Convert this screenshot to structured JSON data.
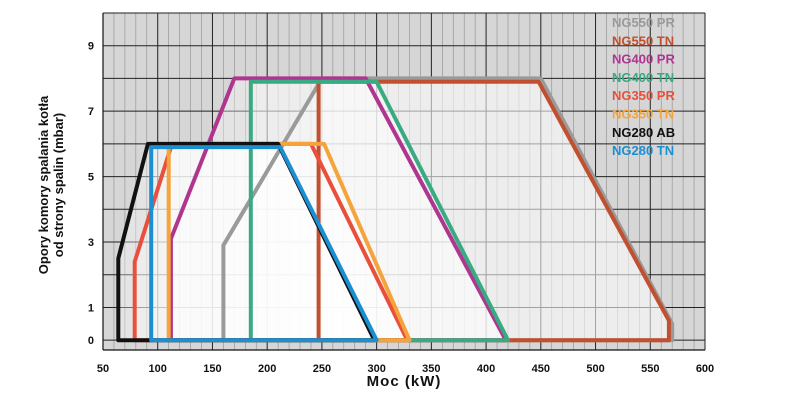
{
  "chart_data": {
    "type": "area",
    "xlabel": "Moc (kW)",
    "ylabel_lines": [
      "Opory komory spalania kotła",
      "od strony spalin (mbar)"
    ],
    "xlim": [
      50,
      600
    ],
    "ylim": [
      -0.3,
      10
    ],
    "x_ticks": [
      50,
      100,
      150,
      200,
      250,
      300,
      350,
      400,
      450,
      500,
      550,
      600
    ],
    "y_ticks": [
      0,
      1,
      3,
      5,
      7,
      9
    ],
    "x_tick_labels": [
      "50",
      "100",
      "150",
      "200",
      "250",
      "300",
      "350",
      "400",
      "450",
      "500",
      "550",
      "600"
    ],
    "y_tick_labels": [
      "0",
      "1",
      "3",
      "5",
      "7",
      "9"
    ],
    "grid": true,
    "legend_position": "top-right",
    "series": [
      {
        "name": "NG550 PR",
        "color": "#9a9a9a",
        "points": [
          [
            160,
            0
          ],
          [
            160,
            2.9
          ],
          [
            250,
            8
          ],
          [
            450,
            8
          ],
          [
            570,
            0.5
          ],
          [
            570,
            0
          ],
          [
            160,
            0
          ]
        ]
      },
      {
        "name": "NG550 TN",
        "color": "#c0502f",
        "points": [
          [
            247,
            0
          ],
          [
            247,
            7.9
          ],
          [
            448,
            7.9
          ],
          [
            567,
            0.6
          ],
          [
            567,
            0
          ],
          [
            247,
            0
          ]
        ]
      },
      {
        "name": "NG400 PR",
        "color": "#b0358f",
        "points": [
          [
            112,
            0
          ],
          [
            112,
            3.1
          ],
          [
            170,
            8
          ],
          [
            290,
            8
          ],
          [
            418,
            0
          ],
          [
            112,
            0
          ]
        ]
      },
      {
        "name": "NG400 TN",
        "color": "#3aaa82",
        "points": [
          [
            185,
            0
          ],
          [
            185,
            7.9
          ],
          [
            300,
            7.9
          ],
          [
            420,
            0
          ],
          [
            185,
            0
          ]
        ]
      },
      {
        "name": "NG350 PR",
        "color": "#e8503c",
        "points": [
          [
            79,
            0
          ],
          [
            79,
            2.4
          ],
          [
            113,
            6
          ],
          [
            240,
            6
          ],
          [
            328,
            0
          ],
          [
            79,
            0
          ]
        ]
      },
      {
        "name": "NG350 TN",
        "color": "#f4a43a",
        "points": [
          [
            110,
            0
          ],
          [
            110,
            6
          ],
          [
            252,
            6
          ],
          [
            330,
            0
          ],
          [
            110,
            0
          ]
        ]
      },
      {
        "name": "NG280 AB",
        "color": "#111111",
        "points": [
          [
            64,
            0
          ],
          [
            64,
            2.5
          ],
          [
            91,
            6
          ],
          [
            210,
            6
          ],
          [
            298,
            0
          ],
          [
            64,
            0
          ]
        ]
      },
      {
        "name": "NG280 TN",
        "color": "#1b8fd1",
        "points": [
          [
            94,
            0
          ],
          [
            94,
            5.9
          ],
          [
            212,
            5.9
          ],
          [
            300,
            0
          ],
          [
            94,
            0
          ]
        ]
      }
    ]
  }
}
